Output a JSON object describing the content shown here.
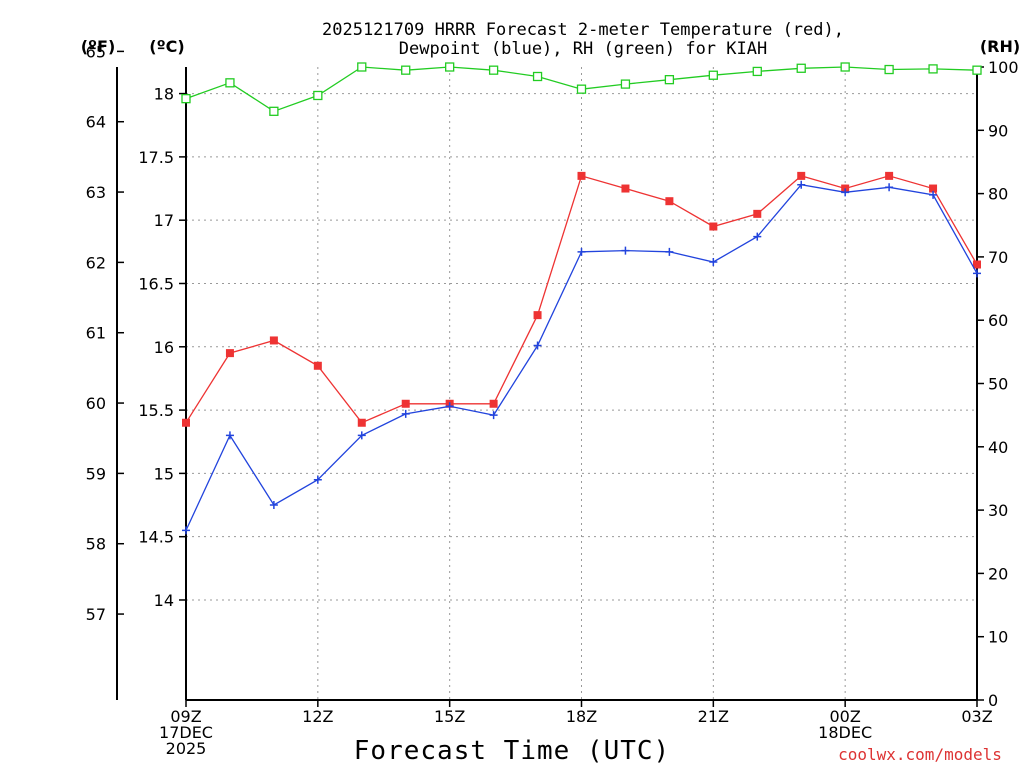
{
  "chart_data": {
    "type": "line",
    "title_line1": "2025121709 HRRR Forecast 2-meter Temperature (red),",
    "title_line2": "Dewpoint (blue), RH (green) for KIAH",
    "xlabel": "Forecast Time (UTC)",
    "credit": "coolwx.com/models",
    "units": {
      "fahrenheit": "(ºF)",
      "celsius": "(ºC)",
      "rh": "(RH)"
    },
    "hours": [
      9,
      10,
      11,
      12,
      13,
      14,
      15,
      16,
      17,
      18,
      19,
      20,
      21,
      22,
      23,
      24,
      25,
      26,
      27
    ],
    "xlim": [
      9,
      27
    ],
    "x_ticks": [
      {
        "h": 9,
        "lines": [
          "09Z",
          "17DEC",
          "2025"
        ]
      },
      {
        "h": 12,
        "lines": [
          "12Z"
        ]
      },
      {
        "h": 15,
        "lines": [
          "15Z"
        ]
      },
      {
        "h": 18,
        "lines": [
          "18Z"
        ]
      },
      {
        "h": 21,
        "lines": [
          "21Z"
        ]
      },
      {
        "h": 24,
        "lines": [
          "00Z",
          "18DEC"
        ]
      },
      {
        "h": 27,
        "lines": [
          "03Z"
        ]
      }
    ],
    "celsius_axis": {
      "lim": [
        13.21,
        18.21
      ],
      "ticks": [
        14,
        14.5,
        15,
        15.5,
        16,
        16.5,
        17,
        17.5,
        18
      ]
    },
    "fahrenheit_axis": {
      "ticks": [
        57,
        58,
        59,
        60,
        61,
        62,
        63,
        64,
        65
      ]
    },
    "rh_axis": {
      "lim": [
        0,
        100
      ],
      "ticks": [
        0,
        10,
        20,
        30,
        40,
        50,
        60,
        70,
        80,
        90,
        100
      ]
    },
    "series": [
      {
        "name": "Temperature",
        "axis": "celsius",
        "color": "#ee3333",
        "marker": "filled-square",
        "values": [
          15.4,
          15.95,
          16.05,
          15.85,
          15.4,
          15.55,
          15.55,
          15.55,
          16.25,
          17.35,
          17.25,
          17.15,
          16.95,
          17.05,
          17.35,
          17.25,
          17.35,
          17.25,
          16.65
        ]
      },
      {
        "name": "Dewpoint",
        "axis": "celsius",
        "color": "#2244dd",
        "marker": "plus",
        "values": [
          14.55,
          15.3,
          14.75,
          14.95,
          15.3,
          15.47,
          15.53,
          15.46,
          16.01,
          16.75,
          16.76,
          16.75,
          16.67,
          16.87,
          17.28,
          17.22,
          17.26,
          17.2,
          16.58
        ]
      },
      {
        "name": "RH",
        "axis": "rh",
        "color": "#22cc22",
        "marker": "open-square",
        "values": [
          95,
          97.5,
          93,
          95.5,
          100,
          99.5,
          100,
          99.5,
          98.5,
          96.5,
          97.3,
          98,
          98.7,
          99.3,
          99.8,
          100,
          99.6,
          99.7,
          99.5
        ]
      }
    ]
  }
}
